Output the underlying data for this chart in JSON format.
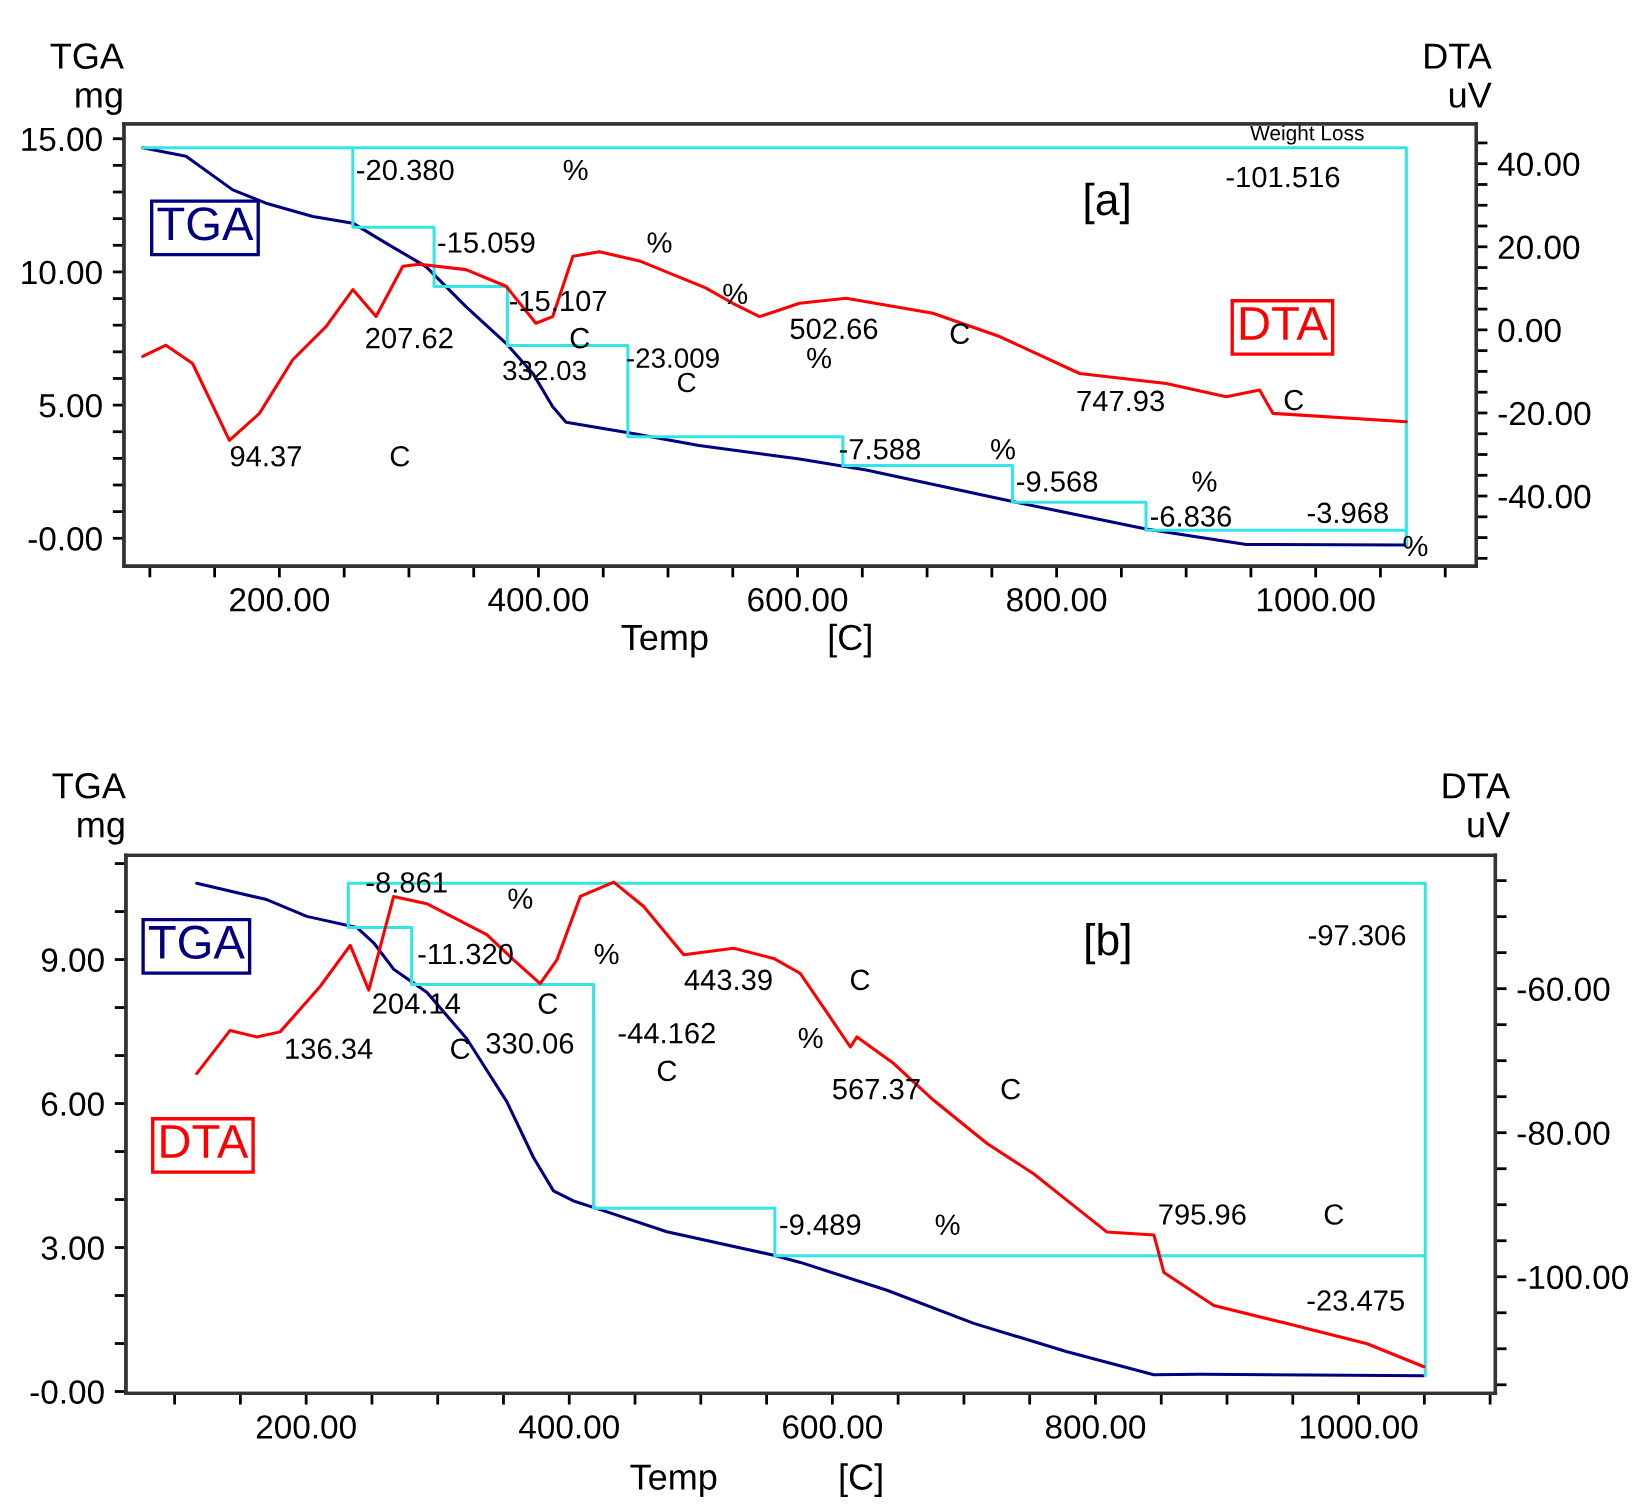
{
  "chart_data": [
    {
      "type": "line",
      "xlabel": "Temp",
      "ylabel": "TGA\nmg",
      "y2label": "DTA\nuV",
      "xlim": [
        80,
        1124
      ],
      "xticks": [
        {
          "value": 100,
          "label": null
        },
        {
          "value": 150,
          "label": null
        },
        {
          "value": 200,
          "label": "200.00"
        },
        {
          "value": 250,
          "label": null
        },
        {
          "value": 300,
          "label": null
        },
        {
          "value": 350,
          "label": null
        },
        {
          "value": 400,
          "label": "400.00"
        },
        {
          "value": 450,
          "label": null
        },
        {
          "value": 500,
          "label": null
        },
        {
          "value": 550,
          "label": null
        },
        {
          "value": 600,
          "label": "600.00"
        },
        {
          "value": 650,
          "label": null
        },
        {
          "value": 700,
          "label": null
        },
        {
          "value": 750,
          "label": null
        },
        {
          "value": 800,
          "label": "800.00"
        },
        {
          "value": 850,
          "label": null
        },
        {
          "value": 900,
          "label": null
        },
        {
          "value": 950,
          "label": null
        },
        {
          "value": 1000,
          "label": "1000.00"
        },
        {
          "value": 1050,
          "label": null
        },
        {
          "value": 1100,
          "label": null
        }
      ],
      "ylim": [
        -1.05,
        15.56
      ],
      "yticks": [
        {
          "value": 0,
          "label": "-0.00"
        },
        {
          "value": 1,
          "label": null
        },
        {
          "value": 2,
          "label": null
        },
        {
          "value": 3,
          "label": null
        },
        {
          "value": 4,
          "label": null
        },
        {
          "value": 5,
          "label": "5.00"
        },
        {
          "value": 6,
          "label": null
        },
        {
          "value": 7,
          "label": null
        },
        {
          "value": 8,
          "label": null
        },
        {
          "value": 9,
          "label": null
        },
        {
          "value": 10,
          "label": "10.00"
        },
        {
          "value": 11,
          "label": null
        },
        {
          "value": 12,
          "label": null
        },
        {
          "value": 13,
          "label": null
        },
        {
          "value": 14,
          "label": null
        },
        {
          "value": 15,
          "label": "15.00"
        }
      ],
      "y2lim": [
        -56.9,
        49.6
      ],
      "y2ticks": [
        {
          "value": -55,
          "label": null
        },
        {
          "value": -50,
          "label": null
        },
        {
          "value": -45,
          "label": null
        },
        {
          "value": -40,
          "label": "-40.00"
        },
        {
          "value": -35,
          "label": null
        },
        {
          "value": -30,
          "label": null
        },
        {
          "value": -25,
          "label": null
        },
        {
          "value": -20,
          "label": "-20.00"
        },
        {
          "value": -15,
          "label": null
        },
        {
          "value": -10,
          "label": null
        },
        {
          "value": -5,
          "label": null
        },
        {
          "value": 0,
          "label": "0.00"
        },
        {
          "value": 5,
          "label": null
        },
        {
          "value": 10,
          "label": null
        },
        {
          "value": 15,
          "label": null
        },
        {
          "value": 20,
          "label": "20.00"
        },
        {
          "value": 25,
          "label": null
        },
        {
          "value": 30,
          "label": null
        },
        {
          "value": 35,
          "label": null
        },
        {
          "value": 40,
          "label": "40.00"
        },
        {
          "value": 45,
          "label": null
        }
      ],
      "series": [
        {
          "name": "TGA",
          "color": "#000080",
          "x": [
            94.5,
            127.9,
            164,
            189.7,
            225.8,
            256.7,
            282.3,
            313.2,
            344,
            375,
            395.7,
            411,
            421.3,
            472.9,
            524,
            601.5,
            653,
            766,
            869,
            946.4,
            1070
          ],
          "values": [
            14.66,
            14.34,
            13.08,
            12.58,
            12.08,
            11.83,
            11.08,
            10.2,
            8.7,
            7.32,
            6.19,
            4.94,
            4.36,
            3.93,
            3.48,
            2.98,
            2.56,
            1.38,
            0.35,
            -0.23,
            -0.25
          ]
        },
        {
          "name": "DTA",
          "color": "#ff0000",
          "axis": "y2",
          "x": [
            94.5,
            112.4,
            133,
            161.4,
            184.6,
            210.3,
            236,
            256.7,
            274.6,
            295.3,
            308,
            344,
            375,
            398,
            411,
            426.6,
            447,
            478,
            529,
            550,
            570.7,
            601.5,
            637.5,
            704.5,
            756,
            817.8,
            884.6,
            931,
            956.7,
            967,
            1070
          ],
          "values": [
            -6.4,
            -3.7,
            -8.1,
            -26.6,
            -20.1,
            -7.2,
            0.8,
            9.7,
            3.2,
            15.3,
            15.8,
            14.5,
            10.5,
            1.6,
            3.2,
            17.7,
            18.8,
            16.6,
            10.1,
            6.4,
            3.2,
            6.4,
            7.6,
            4.0,
            -1.6,
            -10.5,
            -12.9,
            -16.1,
            -14.5,
            -20.1,
            -22.1
          ]
        },
        {
          "color": "#33e6e6",
          "x": [
            94.5,
            256.7,
            256.7,
            319.4,
            319.4,
            376,
            376,
            469,
            469,
            635,
            635,
            766,
            766,
            869,
            869,
            1070,
            1070,
            1070,
            256.7
          ],
          "values": [
            14.66,
            14.66,
            11.68,
            11.68,
            9.45,
            9.45,
            7.24,
            7.24,
            3.81,
            3.81,
            2.73,
            2.73,
            1.35,
            1.35,
            0.3,
            0.3,
            -0.25,
            14.66,
            14.66
          ]
        }
      ],
      "annotations": [
        "[C]",
        "-20.380",
        "%",
        "-15.059",
        "%",
        "-15.107",
        "%",
        "207.62",
        "C",
        "332.03",
        "-23.009",
        "C",
        "502.66",
        "%",
        "C",
        "94.37",
        "C",
        "747.93",
        "C",
        "-7.588",
        "%",
        "-9.568",
        "%",
        "-6.836",
        "-3.968",
        "%",
        "Weight Loss",
        "-101.516",
        "[a]"
      ]
    },
    {
      "type": "line",
      "xlabel": "Temp",
      "ylabel": "TGA\nmg",
      "y2label": "DTA\nuV",
      "xlim": [
        63,
        1104
      ],
      "xticks": [
        {
          "value": 100,
          "label": null
        },
        {
          "value": 150,
          "label": null
        },
        {
          "value": 200,
          "label": "200.00"
        },
        {
          "value": 250,
          "label": null
        },
        {
          "value": 300,
          "label": null
        },
        {
          "value": 350,
          "label": null
        },
        {
          "value": 400,
          "label": "400.00"
        },
        {
          "value": 450,
          "label": null
        },
        {
          "value": 500,
          "label": null
        },
        {
          "value": 550,
          "label": null
        },
        {
          "value": 600,
          "label": "600.00"
        },
        {
          "value": 650,
          "label": null
        },
        {
          "value": 700,
          "label": null
        },
        {
          "value": 750,
          "label": null
        },
        {
          "value": 800,
          "label": "800.00"
        },
        {
          "value": 850,
          "label": null
        },
        {
          "value": 900,
          "label": null
        },
        {
          "value": 950,
          "label": null
        },
        {
          "value": 1000,
          "label": "1000.00"
        },
        {
          "value": 1050,
          "label": null
        },
        {
          "value": 1100,
          "label": null
        }
      ],
      "ylim": [
        -0.04,
        11.17
      ],
      "yticks": [
        {
          "value": 0,
          "label": "-0.00"
        },
        {
          "value": 1,
          "label": null
        },
        {
          "value": 2,
          "label": null
        },
        {
          "value": 3,
          "label": "3.00"
        },
        {
          "value": 4,
          "label": null
        },
        {
          "value": 5,
          "label": null
        },
        {
          "value": 6,
          "label": "6.00"
        },
        {
          "value": 7,
          "label": null
        },
        {
          "value": 8,
          "label": null
        },
        {
          "value": 9,
          "label": "9.00"
        },
        {
          "value": 10,
          "label": null
        },
        {
          "value": 11,
          "label": null
        }
      ],
      "y2lim": [
        -116.2,
        -41.5
      ],
      "y2ticks": [
        {
          "value": -115,
          "label": null
        },
        {
          "value": -110,
          "label": null
        },
        {
          "value": -105,
          "label": null
        },
        {
          "value": -100,
          "label": "-100.00"
        },
        {
          "value": -95,
          "label": null
        },
        {
          "value": -90,
          "label": null
        },
        {
          "value": -85,
          "label": null
        },
        {
          "value": -80,
          "label": "-80.00"
        },
        {
          "value": -75,
          "label": null
        },
        {
          "value": -70,
          "label": null
        },
        {
          "value": -65,
          "label": null
        },
        {
          "value": -60,
          "label": "-60.00"
        },
        {
          "value": -55,
          "label": null
        },
        {
          "value": -50,
          "label": null
        },
        {
          "value": -45,
          "label": null
        }
      ],
      "series": [
        {
          "name": "TGA",
          "color": "#000080",
          "x": [
            116.8,
            170,
            200.5,
            238.5,
            251.3,
            266.5,
            291.7,
            322.1,
            352.5,
            372.9,
            388,
            403.2,
            423.6,
            474.2,
            555.4,
            575.7,
            641.5,
            707.5,
            778.4,
            844.4,
            879.8,
            1049.7
          ],
          "values": [
            10.59,
            10.25,
            9.9,
            9.67,
            9.35,
            8.8,
            8.32,
            7.35,
            6.04,
            4.87,
            4.18,
            3.97,
            3.79,
            3.33,
            2.84,
            2.69,
            2.11,
            1.42,
            0.83,
            0.35,
            0.36,
            0.33
          ]
        },
        {
          "name": "DTA",
          "color": "#ff0000",
          "axis": "y2",
          "x": [
            116.8,
            142.2,
            162.4,
            180.2,
            210.6,
            233.5,
            247.6,
            266.5,
            291.7,
            337.3,
            357.7,
            377.9,
            390.6,
            408.4,
            433.8,
            456.6,
            487,
            525,
            555.4,
            575.7,
            613.7,
            618.7,
            646.7,
            677,
            717.6,
            753,
            778.4,
            808.8,
            844.4,
            852,
            890,
            945.7,
            1006.5,
            1049.7
          ],
          "values": [
            -71.8,
            -65.8,
            -66.7,
            -66.0,
            -59.7,
            -54.0,
            -60.2,
            -47.2,
            -48.2,
            -52.5,
            -56.0,
            -59.3,
            -56.0,
            -47.2,
            -45.2,
            -48.6,
            -55.3,
            -54.4,
            -55.8,
            -57.9,
            -68.1,
            -66.7,
            -70.4,
            -75.5,
            -81.5,
            -85.7,
            -89.4,
            -93.8,
            -94.2,
            -99.4,
            -104.0,
            -106.5,
            -109.3,
            -112.5
          ]
        },
        {
          "color": "#33e6e6",
          "x": [
            1050.7,
            1050.7,
            232,
            232,
            280.2,
            280.2,
            418.5,
            418.5,
            556.3,
            556.3,
            1050.7
          ],
          "values": [
            0.33,
            10.59,
            10.59,
            9.67,
            9.67,
            8.48,
            8.48,
            3.82,
            3.82,
            2.83,
            2.83
          ]
        }
      ],
      "annotations": [
        "[C]",
        "-8.861",
        "%",
        "-11.320",
        "%",
        "204.14",
        "C",
        "136.34",
        "C",
        "330.06",
        "-44.162",
        "C",
        "443.39",
        "C",
        "%",
        "567.37",
        "C",
        "-9.489",
        "%",
        "795.96",
        "C",
        "-97.306",
        "-23.475",
        "[b]"
      ]
    }
  ]
}
